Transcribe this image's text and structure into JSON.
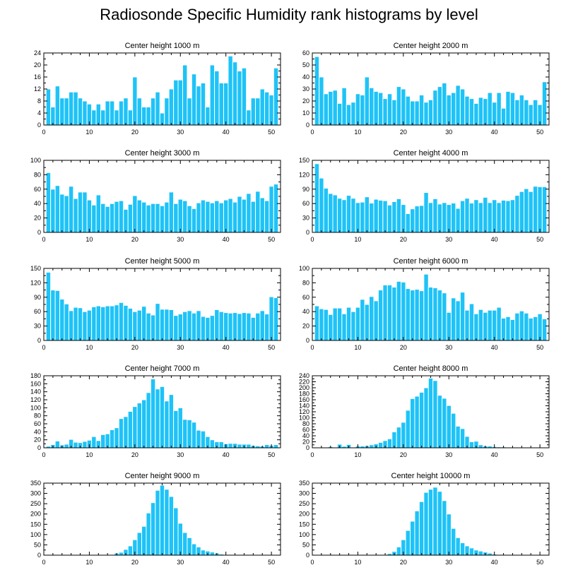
{
  "title": "Radiosonde Specific Humidity rank histograms by level",
  "colors": {
    "bar": "#1ec3f7",
    "bar_stroke": "#ffffff",
    "axis": "#000000"
  },
  "chart_data": [
    {
      "type": "bar",
      "title": "Center height 1000 m",
      "xlabel": "",
      "ylabel": "",
      "xlim": [
        0,
        52
      ],
      "ylim": [
        0,
        24
      ],
      "xticks": [
        0,
        10,
        20,
        30,
        40,
        50
      ],
      "yticks": [
        0,
        4,
        8,
        12,
        16,
        20,
        24
      ],
      "x": [
        1,
        2,
        3,
        4,
        5,
        6,
        7,
        8,
        9,
        10,
        11,
        12,
        13,
        14,
        15,
        16,
        17,
        18,
        19,
        20,
        21,
        22,
        23,
        24,
        25,
        26,
        27,
        28,
        29,
        30,
        31,
        32,
        33,
        34,
        35,
        36,
        37,
        38,
        39,
        40,
        41,
        42,
        43,
        44,
        45,
        46,
        47,
        48,
        49,
        50,
        51
      ],
      "values": [
        12,
        6,
        13,
        9,
        9,
        11,
        11,
        9,
        8,
        7,
        5,
        7,
        5,
        8,
        8,
        5,
        8,
        9,
        5,
        16,
        9,
        6,
        6,
        9,
        11,
        4,
        9,
        12,
        15,
        15,
        20,
        9,
        17,
        13,
        14,
        6,
        20,
        18,
        14,
        14,
        23,
        21,
        18,
        19,
        5,
        9,
        9,
        12,
        11,
        10,
        19
      ]
    },
    {
      "type": "bar",
      "title": "Center height 2000 m",
      "xlabel": "",
      "ylabel": "",
      "xlim": [
        0,
        52
      ],
      "ylim": [
        0,
        60
      ],
      "xticks": [
        0,
        10,
        20,
        30,
        40,
        50
      ],
      "yticks": [
        0,
        10,
        20,
        30,
        40,
        50,
        60
      ],
      "x": [
        1,
        2,
        3,
        4,
        5,
        6,
        7,
        8,
        9,
        10,
        11,
        12,
        13,
        14,
        15,
        16,
        17,
        18,
        19,
        20,
        21,
        22,
        23,
        24,
        25,
        26,
        27,
        28,
        29,
        30,
        31,
        32,
        33,
        34,
        35,
        36,
        37,
        38,
        39,
        40,
        41,
        42,
        43,
        44,
        45,
        46,
        47,
        48,
        49,
        50,
        51
      ],
      "values": [
        57,
        40,
        26,
        28,
        29,
        18,
        31,
        17,
        19,
        26,
        25,
        40,
        31,
        28,
        27,
        22,
        26,
        21,
        32,
        30,
        24,
        20,
        20,
        25,
        19,
        21,
        29,
        32,
        35,
        25,
        27,
        33,
        30,
        24,
        22,
        18,
        23,
        22,
        27,
        19,
        27,
        14,
        28,
        27,
        21,
        25,
        21,
        17,
        21,
        17,
        36
      ]
    },
    {
      "type": "bar",
      "title": "Center height 3000 m",
      "xlabel": "",
      "ylabel": "",
      "xlim": [
        0,
        52
      ],
      "ylim": [
        0,
        100
      ],
      "xticks": [
        0,
        10,
        20,
        30,
        40,
        50
      ],
      "yticks": [
        0,
        20,
        40,
        60,
        80,
        100
      ],
      "x": [
        1,
        2,
        3,
        4,
        5,
        6,
        7,
        8,
        9,
        10,
        11,
        12,
        13,
        14,
        15,
        16,
        17,
        18,
        19,
        20,
        21,
        22,
        23,
        24,
        25,
        26,
        27,
        28,
        29,
        30,
        31,
        32,
        33,
        34,
        35,
        36,
        37,
        38,
        39,
        40,
        41,
        42,
        43,
        44,
        45,
        46,
        47,
        48,
        49,
        50,
        51
      ],
      "values": [
        83,
        60,
        65,
        53,
        51,
        64,
        47,
        56,
        56,
        45,
        38,
        52,
        40,
        36,
        40,
        43,
        44,
        32,
        39,
        51,
        45,
        42,
        38,
        40,
        40,
        37,
        42,
        56,
        40,
        46,
        44,
        37,
        33,
        41,
        45,
        43,
        41,
        44,
        41,
        45,
        47,
        42,
        50,
        46,
        54,
        43,
        57,
        48,
        44,
        64,
        67
      ]
    },
    {
      "type": "bar",
      "title": "Center height 4000 m",
      "xlabel": "",
      "ylabel": "",
      "xlim": [
        0,
        52
      ],
      "ylim": [
        0,
        150
      ],
      "xticks": [
        0,
        10,
        20,
        30,
        40,
        50
      ],
      "yticks": [
        0,
        30,
        60,
        90,
        120,
        150
      ],
      "x": [
        1,
        2,
        3,
        4,
        5,
        6,
        7,
        8,
        9,
        10,
        11,
        12,
        13,
        14,
        15,
        16,
        17,
        18,
        19,
        20,
        21,
        22,
        23,
        24,
        25,
        26,
        27,
        28,
        29,
        30,
        31,
        32,
        33,
        34,
        35,
        36,
        37,
        38,
        39,
        40,
        41,
        42,
        43,
        44,
        45,
        46,
        47,
        48,
        49,
        50,
        51
      ],
      "values": [
        143,
        113,
        92,
        81,
        78,
        71,
        68,
        77,
        71,
        62,
        63,
        74,
        61,
        69,
        67,
        66,
        57,
        64,
        70,
        58,
        39,
        49,
        55,
        56,
        83,
        62,
        70,
        59,
        62,
        58,
        61,
        50,
        66,
        71,
        61,
        68,
        62,
        73,
        62,
        68,
        62,
        67,
        66,
        68,
        77,
        85,
        91,
        85,
        96,
        95,
        95
      ]
    },
    {
      "type": "bar",
      "title": "Center height 5000 m",
      "xlabel": "",
      "ylabel": "",
      "xlim": [
        0,
        52
      ],
      "ylim": [
        0,
        150
      ],
      "xticks": [
        0,
        10,
        20,
        30,
        40,
        50
      ],
      "yticks": [
        0,
        30,
        60,
        90,
        120,
        150
      ],
      "x": [
        1,
        2,
        3,
        4,
        5,
        6,
        7,
        8,
        9,
        10,
        11,
        12,
        13,
        14,
        15,
        16,
        17,
        18,
        19,
        20,
        21,
        22,
        23,
        24,
        25,
        26,
        27,
        28,
        29,
        30,
        31,
        32,
        33,
        34,
        35,
        36,
        37,
        38,
        39,
        40,
        41,
        42,
        43,
        44,
        45,
        46,
        47,
        48,
        49,
        50,
        51
      ],
      "values": [
        142,
        105,
        104,
        86,
        76,
        62,
        69,
        68,
        60,
        63,
        70,
        72,
        70,
        72,
        72,
        74,
        79,
        73,
        67,
        60,
        63,
        71,
        57,
        53,
        77,
        65,
        65,
        64,
        52,
        55,
        60,
        62,
        57,
        62,
        50,
        48,
        52,
        64,
        60,
        58,
        57,
        58,
        56,
        58,
        57,
        48,
        57,
        62,
        55,
        91,
        89
      ]
    },
    {
      "type": "bar",
      "title": "Center height 6000 m",
      "xlabel": "",
      "ylabel": "",
      "xlim": [
        0,
        52
      ],
      "ylim": [
        0,
        100
      ],
      "xticks": [
        0,
        10,
        20,
        30,
        40,
        50
      ],
      "yticks": [
        0,
        20,
        40,
        60,
        80,
        100
      ],
      "x": [
        1,
        2,
        3,
        4,
        5,
        6,
        7,
        8,
        9,
        10,
        11,
        12,
        13,
        14,
        15,
        16,
        17,
        18,
        19,
        20,
        21,
        22,
        23,
        24,
        25,
        26,
        27,
        28,
        29,
        30,
        31,
        32,
        33,
        34,
        35,
        36,
        37,
        38,
        39,
        40,
        41,
        42,
        43,
        44,
        45,
        46,
        47,
        48,
        49,
        50,
        51
      ],
      "values": [
        48,
        44,
        43,
        36,
        45,
        45,
        37,
        46,
        40,
        46,
        57,
        50,
        61,
        55,
        70,
        77,
        77,
        74,
        82,
        81,
        72,
        70,
        71,
        69,
        92,
        74,
        73,
        70,
        66,
        39,
        59,
        55,
        67,
        42,
        51,
        37,
        43,
        39,
        42,
        42,
        46,
        31,
        33,
        29,
        38,
        41,
        38,
        31,
        33,
        37,
        30
      ]
    },
    {
      "type": "bar",
      "title": "Center height 7000 m",
      "xlabel": "",
      "ylabel": "",
      "xlim": [
        0,
        52
      ],
      "ylim": [
        0,
        180
      ],
      "xticks": [
        0,
        10,
        20,
        30,
        40,
        50
      ],
      "yticks": [
        0,
        20,
        40,
        60,
        80,
        100,
        120,
        140,
        160,
        180
      ],
      "x": [
        1,
        2,
        3,
        4,
        5,
        6,
        7,
        8,
        9,
        10,
        11,
        12,
        13,
        14,
        15,
        16,
        17,
        18,
        19,
        20,
        21,
        22,
        23,
        24,
        25,
        26,
        27,
        28,
        29,
        30,
        31,
        32,
        33,
        34,
        35,
        36,
        37,
        38,
        39,
        40,
        41,
        42,
        43,
        44,
        45,
        46,
        47,
        48,
        49,
        50,
        51
      ],
      "values": [
        4,
        8,
        17,
        7,
        9,
        21,
        14,
        13,
        16,
        19,
        28,
        18,
        33,
        35,
        45,
        50,
        73,
        78,
        91,
        103,
        112,
        120,
        138,
        172,
        147,
        153,
        117,
        133,
        93,
        100,
        71,
        70,
        64,
        44,
        42,
        28,
        20,
        15,
        15,
        10,
        11,
        11,
        9,
        9,
        9,
        6,
        5,
        4,
        8,
        6,
        8
      ]
    },
    {
      "type": "bar",
      "title": "Center height 8000 m",
      "xlabel": "",
      "ylabel": "",
      "xlim": [
        0,
        52
      ],
      "ylim": [
        0,
        240
      ],
      "xticks": [
        0,
        10,
        20,
        30,
        40,
        50
      ],
      "yticks": [
        0,
        20,
        40,
        60,
        80,
        100,
        120,
        140,
        160,
        180,
        200,
        220,
        240
      ],
      "x": [
        1,
        2,
        3,
        4,
        5,
        6,
        7,
        8,
        9,
        10,
        11,
        12,
        13,
        14,
        15,
        16,
        17,
        18,
        19,
        20,
        21,
        22,
        23,
        24,
        25,
        26,
        27,
        28,
        29,
        30,
        31,
        32,
        33,
        34,
        35,
        36,
        37,
        38,
        39,
        40,
        41,
        42,
        43,
        44,
        45,
        46,
        47,
        48,
        49,
        50,
        51
      ],
      "values": [
        0,
        1,
        1,
        4,
        2,
        12,
        5,
        11,
        2,
        6,
        6,
        7,
        10,
        13,
        18,
        24,
        30,
        53,
        69,
        85,
        125,
        164,
        172,
        185,
        200,
        232,
        224,
        175,
        165,
        141,
        115,
        72,
        64,
        38,
        20,
        22,
        10,
        6,
        6,
        4,
        3,
        3,
        2,
        0,
        0,
        0,
        0,
        0,
        0,
        1,
        0
      ]
    },
    {
      "type": "bar",
      "title": "Center height 9000 m",
      "xlabel": "",
      "ylabel": "",
      "xlim": [
        0,
        52
      ],
      "ylim": [
        0,
        350
      ],
      "xticks": [
        0,
        10,
        20,
        30,
        40,
        50
      ],
      "yticks": [
        0,
        50,
        100,
        150,
        200,
        250,
        300,
        350
      ],
      "x": [
        1,
        2,
        3,
        4,
        5,
        6,
        7,
        8,
        9,
        10,
        11,
        12,
        13,
        14,
        15,
        16,
        17,
        18,
        19,
        20,
        21,
        22,
        23,
        24,
        25,
        26,
        27,
        28,
        29,
        30,
        31,
        32,
        33,
        34,
        35,
        36,
        37,
        38,
        39,
        40,
        41,
        42,
        43,
        44,
        45,
        46,
        47,
        48,
        49,
        50,
        51
      ],
      "values": [
        0,
        0,
        0,
        0,
        0,
        0,
        0,
        0,
        0,
        0,
        0,
        0,
        1,
        2,
        3,
        10,
        14,
        28,
        45,
        75,
        110,
        140,
        205,
        255,
        315,
        340,
        320,
        285,
        230,
        155,
        110,
        85,
        55,
        40,
        25,
        20,
        15,
        10,
        5,
        2,
        2,
        1,
        0,
        0,
        0,
        0,
        0,
        0,
        0,
        0,
        0
      ]
    },
    {
      "type": "bar",
      "title": "Center height 10000 m",
      "xlabel": "",
      "ylabel": "",
      "xlim": [
        0,
        52
      ],
      "ylim": [
        0,
        350
      ],
      "xticks": [
        0,
        10,
        20,
        30,
        40,
        50
      ],
      "yticks": [
        0,
        50,
        100,
        150,
        200,
        250,
        300,
        350
      ],
      "x": [
        1,
        2,
        3,
        4,
        5,
        6,
        7,
        8,
        9,
        10,
        11,
        12,
        13,
        14,
        15,
        16,
        17,
        18,
        19,
        20,
        21,
        22,
        23,
        24,
        25,
        26,
        27,
        28,
        29,
        30,
        31,
        32,
        33,
        34,
        35,
        36,
        37,
        38,
        39,
        40,
        41,
        42,
        43,
        44,
        45,
        46,
        47,
        48,
        49,
        50,
        51
      ],
      "values": [
        0,
        0,
        0,
        0,
        0,
        0,
        0,
        0,
        0,
        0,
        0,
        0,
        0,
        0,
        0,
        3,
        8,
        18,
        40,
        75,
        120,
        165,
        215,
        260,
        305,
        320,
        330,
        310,
        265,
        200,
        130,
        85,
        60,
        45,
        35,
        25,
        20,
        15,
        10,
        5,
        3,
        2,
        2,
        1,
        1,
        0,
        0,
        0,
        0,
        0,
        0
      ]
    }
  ]
}
